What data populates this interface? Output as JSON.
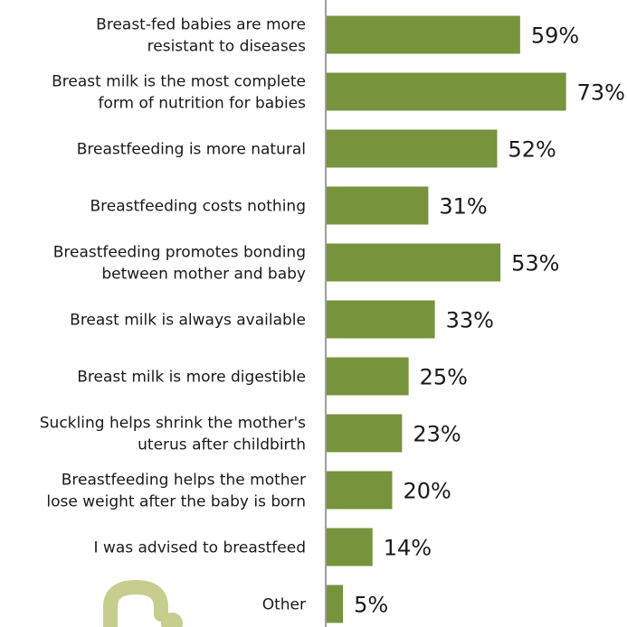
{
  "chart_data": {
    "type": "bar",
    "orientation": "horizontal",
    "categories": [
      [
        "Breast-fed babies are more",
        "resistant to diseases"
      ],
      [
        "Breast milk is the most complete",
        "form of nutrition for babies"
      ],
      [
        "Breastfeeding is more natural"
      ],
      [
        "Breastfeeding costs nothing"
      ],
      [
        "Breastfeeding promotes bonding",
        "between mother and baby"
      ],
      [
        "Breast milk is always available"
      ],
      [
        "Breast milk is more digestible"
      ],
      [
        "Suckling helps shrink the mother's",
        "uterus after childbirth"
      ],
      [
        "Breastfeeding helps the mother",
        "lose weight after the baby is born"
      ],
      [
        "I was advised to breastfeed"
      ],
      [
        "Other"
      ]
    ],
    "values": [
      59,
      73,
      52,
      31,
      53,
      33,
      25,
      23,
      20,
      14,
      5
    ],
    "value_labels": [
      "59%",
      "73%",
      "52%",
      "31%",
      "53%",
      "33%",
      "25%",
      "23%",
      "20%",
      "14%",
      "5%"
    ],
    "xlim": [
      0,
      80
    ],
    "grid": false,
    "legend": "none",
    "bar_color": "#77933c",
    "axis_color": "#7f7f7f",
    "logo_color": "#c6ce8e"
  }
}
